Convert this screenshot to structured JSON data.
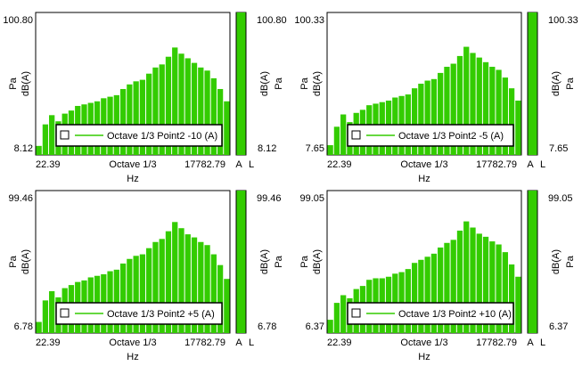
{
  "chart_data": [
    {
      "type": "bar",
      "series": [
        {
          "name": "Octave 1/3 Point2 -10 (A)",
          "color": "#33cc00"
        }
      ],
      "legend": "Octave 1/3 Point2 -10 (A)",
      "y_top_label": "100.80",
      "y_bottom_label": "8.12",
      "ylim": [
        8.12,
        100.8
      ],
      "ylabel_inner": "dB(A)",
      "ylabel_outer": "Pa",
      "x_left_label": "22.39",
      "x_center_label": "Octave 1/3",
      "x_right_label": "17782.79",
      "xlabel": "Hz",
      "side_labels": [
        "A",
        "L"
      ],
      "overall_level_fill": 1.0,
      "values": [
        14,
        28,
        34,
        30,
        35,
        37,
        40,
        41,
        42,
        43,
        45,
        46,
        47,
        51,
        54,
        56,
        57,
        61,
        65,
        67,
        72,
        78,
        74,
        71,
        68,
        65,
        63,
        58,
        51,
        43
      ]
    },
    {
      "type": "bar",
      "series": [
        {
          "name": "Octave 1/3 Point2 -5 (A)",
          "color": "#33cc00"
        }
      ],
      "legend": "Octave 1/3 Point2 -5 (A)",
      "y_top_label": "100.33",
      "y_bottom_label": "7.65",
      "ylim": [
        7.65,
        100.33
      ],
      "ylabel_inner": "dB(A)",
      "ylabel_outer": "Pa",
      "x_left_label": "22.39",
      "x_center_label": "Octave 1/3",
      "x_right_label": "17782.79",
      "xlabel": "Hz",
      "side_labels": [
        "A",
        "L"
      ],
      "overall_level_fill": 1.0,
      "values": [
        14,
        26,
        34,
        29,
        35,
        37,
        40,
        41,
        42,
        43,
        45,
        46,
        47,
        51,
        54,
        56,
        57,
        61,
        65,
        67,
        72,
        78,
        74,
        71,
        68,
        65,
        63,
        58,
        51,
        43
      ]
    },
    {
      "type": "bar",
      "series": [
        {
          "name": "Octave 1/3 Point2 +5 (A)",
          "color": "#33cc00"
        }
      ],
      "legend": "Octave 1/3 Point2 +5 (A)",
      "y_top_label": "99.46",
      "y_bottom_label": "6.78",
      "ylim": [
        6.78,
        99.46
      ],
      "ylabel_inner": "dB(A)",
      "ylabel_outer": "Pa",
      "x_left_label": "22.39",
      "x_center_label": "Octave 1/3",
      "x_right_label": "17782.79",
      "xlabel": "Hz",
      "side_labels": [
        "A",
        "L"
      ],
      "overall_level_fill": 1.0,
      "values": [
        14,
        28,
        34,
        30,
        36,
        38,
        40,
        41,
        43,
        44,
        45,
        47,
        48,
        52,
        55,
        57,
        58,
        62,
        66,
        68,
        73,
        79,
        75,
        71,
        69,
        66,
        64,
        58,
        51,
        42
      ]
    },
    {
      "type": "bar",
      "series": [
        {
          "name": "Octave 1/3 Point2 +10 (A)",
          "color": "#33cc00"
        }
      ],
      "legend": "Octave 1/3 Point2 +10 (A)",
      "y_top_label": "99.05",
      "y_bottom_label": "6.37",
      "ylim": [
        6.37,
        99.05
      ],
      "ylabel_inner": "dB(A)",
      "ylabel_outer": "Pa",
      "x_left_label": "22.39",
      "x_center_label": "Octave 1/3",
      "x_right_label": "17782.79",
      "xlabel": "Hz",
      "side_labels": [
        "A",
        "L"
      ],
      "overall_level_fill": 1.0,
      "values": [
        15,
        26,
        31,
        29,
        35,
        37,
        41,
        42,
        42,
        43,
        45,
        46,
        48,
        52,
        54,
        56,
        58,
        62,
        65,
        67,
        73,
        79,
        75,
        71,
        69,
        66,
        64,
        59,
        51,
        43
      ]
    }
  ]
}
